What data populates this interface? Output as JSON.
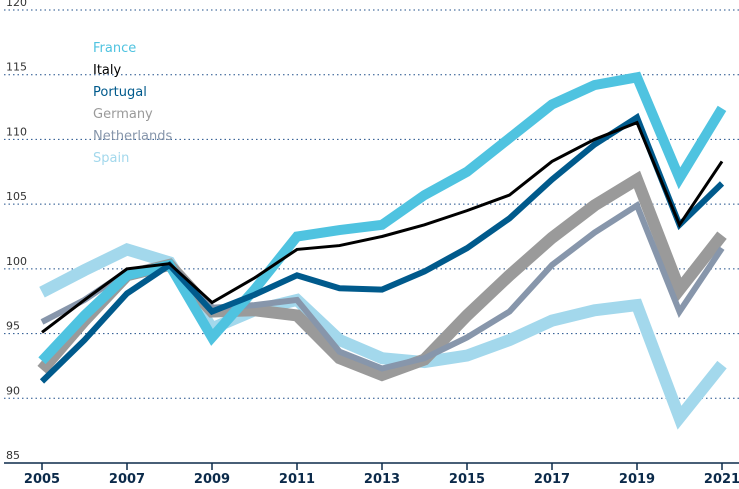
{
  "chart_data": {
    "type": "line",
    "x": [
      2005,
      2006,
      2007,
      2008,
      2009,
      2010,
      2011,
      2012,
      2013,
      2014,
      2015,
      2016,
      2017,
      2018,
      2019,
      2020,
      2021
    ],
    "xlim": [
      2005,
      2021
    ],
    "xticks": [
      2005,
      2007,
      2009,
      2011,
      2013,
      2015,
      2017,
      2019,
      2021
    ],
    "ylim": [
      85,
      120
    ],
    "yticks": [
      85,
      90,
      95,
      100,
      105,
      110,
      115,
      120
    ],
    "grid": true,
    "legend": "upper left",
    "series": [
      {
        "name": "France",
        "color": "#4fc3e0",
        "values": [
          92.9,
          96.4,
          99.5,
          100.3,
          94.7,
          98.4,
          102.5,
          103,
          103.4,
          105.7,
          107.5,
          110.1,
          112.7,
          114.2,
          114.8,
          107,
          112.4
        ]
      },
      {
        "name": "Italy",
        "color": "#000000",
        "values": [
          95.1,
          97.6,
          100,
          100.4,
          97.4,
          99.3,
          101.5,
          101.8,
          102.5,
          103.4,
          104.5,
          105.7,
          108.3,
          110,
          111.3,
          103.4,
          108.3
        ]
      },
      {
        "name": "Portugal",
        "color": "#005a8c",
        "values": [
          91.3,
          94.5,
          98.1,
          100.3,
          96.7,
          98,
          99.5,
          98.5,
          98.4,
          99.8,
          101.6,
          103.9,
          106.9,
          109.6,
          111.7,
          103.4,
          106.6
        ]
      },
      {
        "name": "Germany",
        "color": "#9a9a9a",
        "values": [
          92.2,
          96,
          99.5,
          100.3,
          96.7,
          96.8,
          96.4,
          93.1,
          91.8,
          93,
          96.4,
          99.5,
          102.4,
          104.9,
          106.9,
          98.4,
          102.6
        ]
      },
      {
        "name": "Netherlands",
        "color": "#8796ab",
        "values": [
          95.9,
          97.6,
          99.8,
          100.4,
          97,
          97.2,
          97.6,
          93.6,
          92.3,
          93.1,
          94.7,
          96.7,
          100.3,
          102.8,
          104.9,
          96.7,
          101.6
        ]
      },
      {
        "name": "Spain",
        "color": "#a3d8ec",
        "values": [
          98.2,
          99.9,
          101.5,
          100.5,
          95.4,
          96.8,
          97.6,
          94.5,
          93.1,
          92.8,
          93.3,
          94.5,
          96,
          96.8,
          97.2,
          88.5,
          92.6
        ]
      }
    ]
  }
}
